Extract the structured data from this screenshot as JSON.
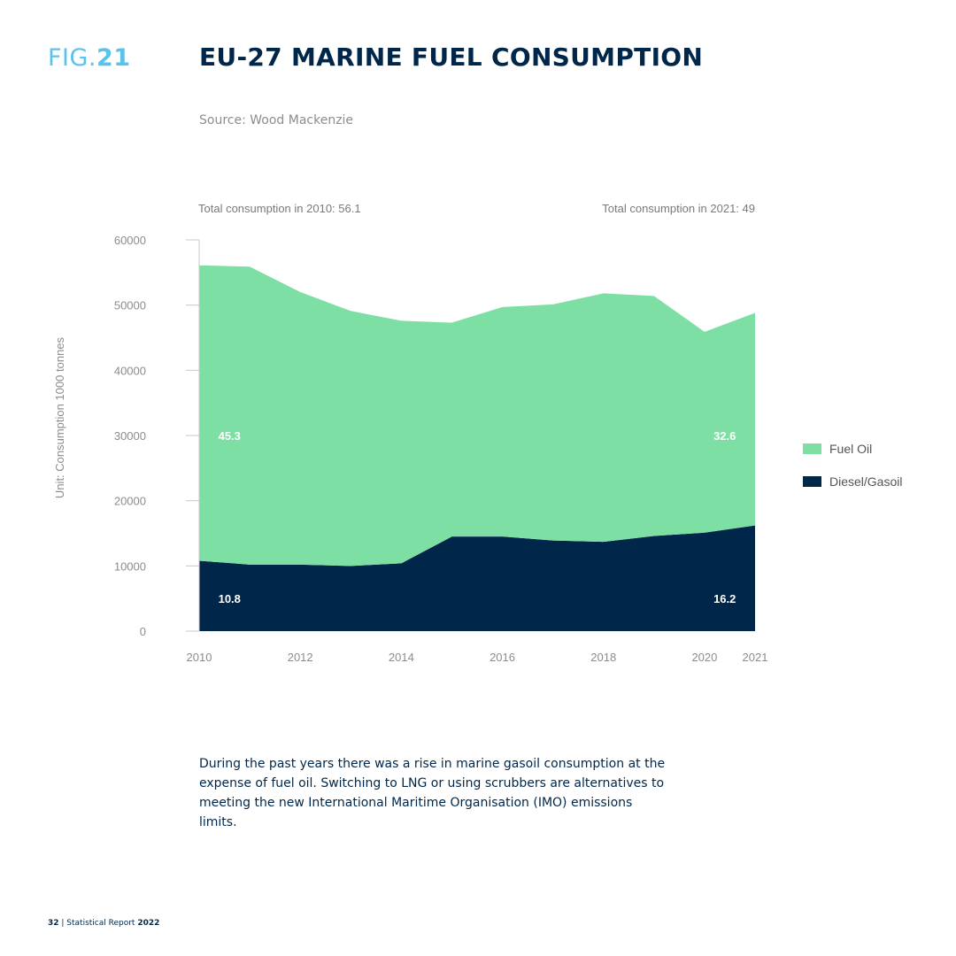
{
  "header": {
    "fig_prefix": "FIG.",
    "fig_number": "21",
    "title": "EU-27 MARINE FUEL CONSUMPTION",
    "source": "Source: Wood Mackenzie"
  },
  "chart_data": {
    "type": "area",
    "stacked": true,
    "x": [
      2010,
      2011,
      2012,
      2013,
      2014,
      2015,
      2016,
      2017,
      2018,
      2019,
      2020,
      2021
    ],
    "xticks": [
      "2010",
      "2012",
      "2014",
      "2016",
      "2018",
      "2020",
      "2021"
    ],
    "yticks": [
      0,
      10000,
      20000,
      30000,
      40000,
      50000,
      60000
    ],
    "ylim": [
      0,
      60000
    ],
    "ylabel": "Unit: Consumption  1000 tonnes",
    "xlabel": "",
    "series": [
      {
        "name": "Diesel/Gasoil",
        "color": "#00264a",
        "values": [
          10800,
          10200,
          10200,
          10000,
          10400,
          14500,
          14500,
          13900,
          13700,
          14600,
          15100,
          16200
        ]
      },
      {
        "name": "Fuel Oil",
        "color": "#7ddfa3",
        "values": [
          45300,
          45700,
          41800,
          39100,
          37200,
          32800,
          35200,
          36200,
          38100,
          36800,
          30800,
          32600
        ]
      }
    ],
    "annotations": {
      "total_2010": "Total consumption in 2010: 56.1",
      "total_2021": "Total consumption in 2021: 49",
      "fuel_oil_2010": "45.3",
      "fuel_oil_2021": "32.6",
      "diesel_2010": "10.8",
      "diesel_2021": "16.2"
    },
    "legend": {
      "placement": "right",
      "items": [
        {
          "label": "Fuel Oil",
          "color": "#7ddfa3"
        },
        {
          "label": "Diesel/Gasoil",
          "color": "#00264a"
        }
      ]
    },
    "grid": false
  },
  "caption": "During the past years there was a rise in marine gasoil consumption at the expense of fuel oil. Switching to LNG or using scrubbers are alternatives to meeting the new International Maritime Organisation (IMO) emissions limits.",
  "footer": {
    "page": "32",
    "separator": " | ",
    "report": "Statistical Report",
    "year": "2022"
  }
}
